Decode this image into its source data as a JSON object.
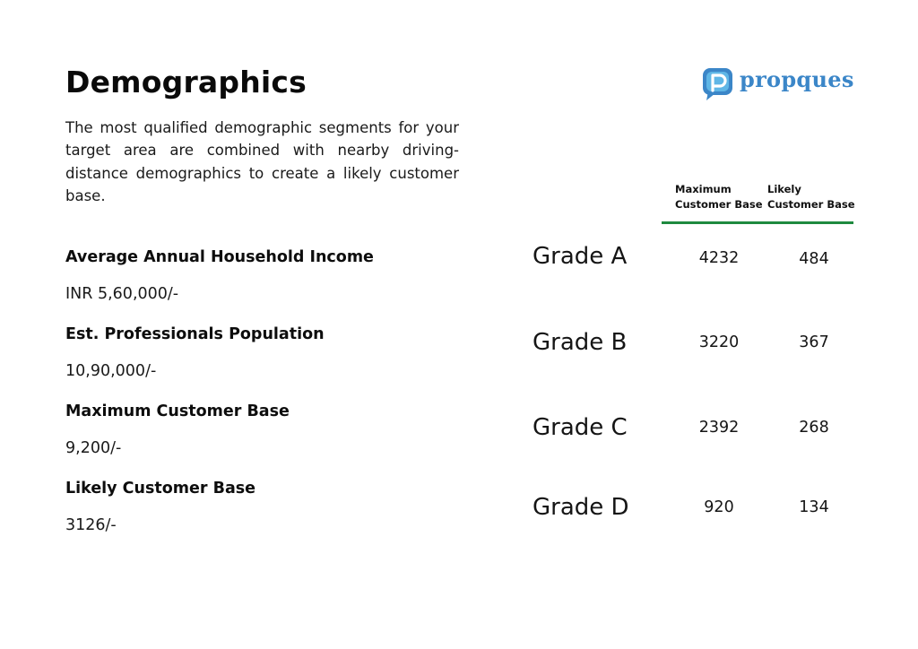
{
  "title": "Demographics",
  "intro": "The most qualified demographic segments for your target area are combined with nearby driving-distance demographics to create a likely customer base.",
  "brand": {
    "name": "propques",
    "color": "#3b86c8",
    "icon": "chat-bubble-p-icon"
  },
  "metrics": [
    {
      "label": "Average Annual Household Income",
      "value": "INR 5,60,000/-"
    },
    {
      "label": "Est. Professionals Population",
      "value": "10,90,000/-"
    },
    {
      "label": "Maximum Customer Base",
      "value": "9,200/-"
    },
    {
      "label": "Likely Customer Base",
      "value": "3126/-"
    }
  ],
  "grade_table": {
    "headers": {
      "max_line1": "Maximum",
      "max_line2": "Customer Base",
      "likely_line1": "Likely",
      "likely_line2": "Customer Base"
    },
    "rule_color": "#1f8a3f",
    "rows": [
      {
        "grade": "Grade A",
        "maximum": "4232",
        "likely": "484"
      },
      {
        "grade": "Grade B",
        "maximum": "3220",
        "likely": "367"
      },
      {
        "grade": "Grade C",
        "maximum": "2392",
        "likely": "268"
      },
      {
        "grade": "Grade D",
        "maximum": "920",
        "likely": "134"
      }
    ]
  }
}
